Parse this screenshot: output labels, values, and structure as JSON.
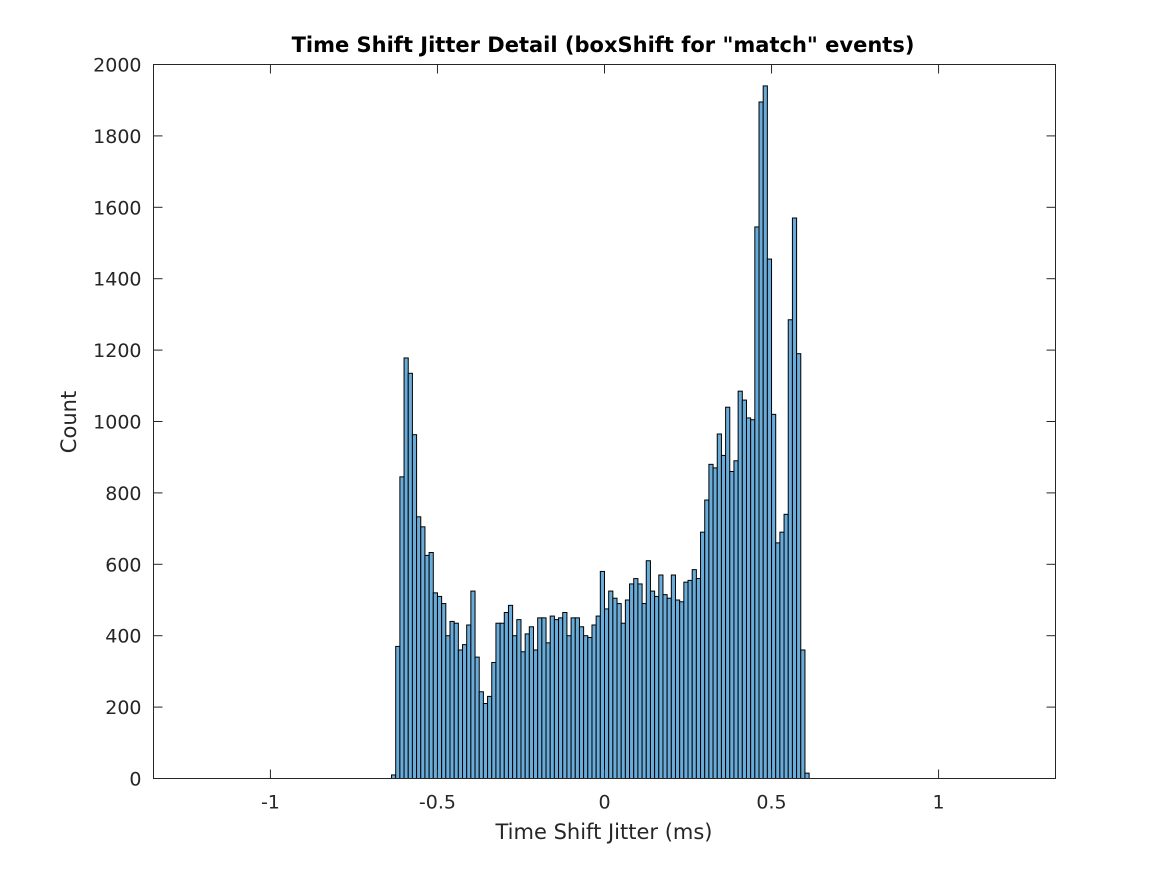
{
  "chart_data": {
    "type": "bar",
    "title": "Time Shift Jitter Detail (boxShift for \"match\" events)",
    "xlabel": "Time Shift Jitter (ms)",
    "ylabel": "Count",
    "xlim": [
      -1.35,
      1.35
    ],
    "ylim": [
      0,
      2000
    ],
    "xticks": [
      -1,
      -0.5,
      0,
      0.5,
      1
    ],
    "xtick_labels": [
      "-1",
      "-0.5",
      "0",
      "0.5",
      "1"
    ],
    "yticks": [
      0,
      200,
      400,
      600,
      800,
      1000,
      1200,
      1400,
      1600,
      1800,
      2000
    ],
    "ytick_labels": [
      "0",
      "200",
      "400",
      "600",
      "800",
      "1000",
      "1200",
      "1400",
      "1600",
      "1800",
      "2000"
    ],
    "grid": false,
    "bar_color": "#6aacd9",
    "bin_start": -0.6375,
    "bin_width": 0.0125,
    "values": [
      10,
      370,
      845,
      1178,
      1135,
      963,
      733,
      705,
      625,
      633,
      520,
      510,
      490,
      400,
      440,
      435,
      360,
      375,
      430,
      525,
      340,
      243,
      210,
      230,
      325,
      435,
      435,
      465,
      485,
      400,
      445,
      355,
      405,
      425,
      360,
      450,
      450,
      380,
      455,
      445,
      450,
      465,
      400,
      450,
      450,
      425,
      400,
      395,
      430,
      455,
      580,
      475,
      525,
      505,
      490,
      435,
      500,
      545,
      560,
      545,
      490,
      610,
      525,
      510,
      570,
      515,
      505,
      570,
      500,
      495,
      550,
      555,
      585,
      560,
      690,
      780,
      880,
      870,
      965,
      905,
      1040,
      860,
      890,
      1085,
      1060,
      1010,
      1005,
      1545,
      1895,
      1940,
      1455,
      1020,
      660,
      690,
      740,
      1285,
      1570,
      1190,
      360,
      15
    ]
  }
}
